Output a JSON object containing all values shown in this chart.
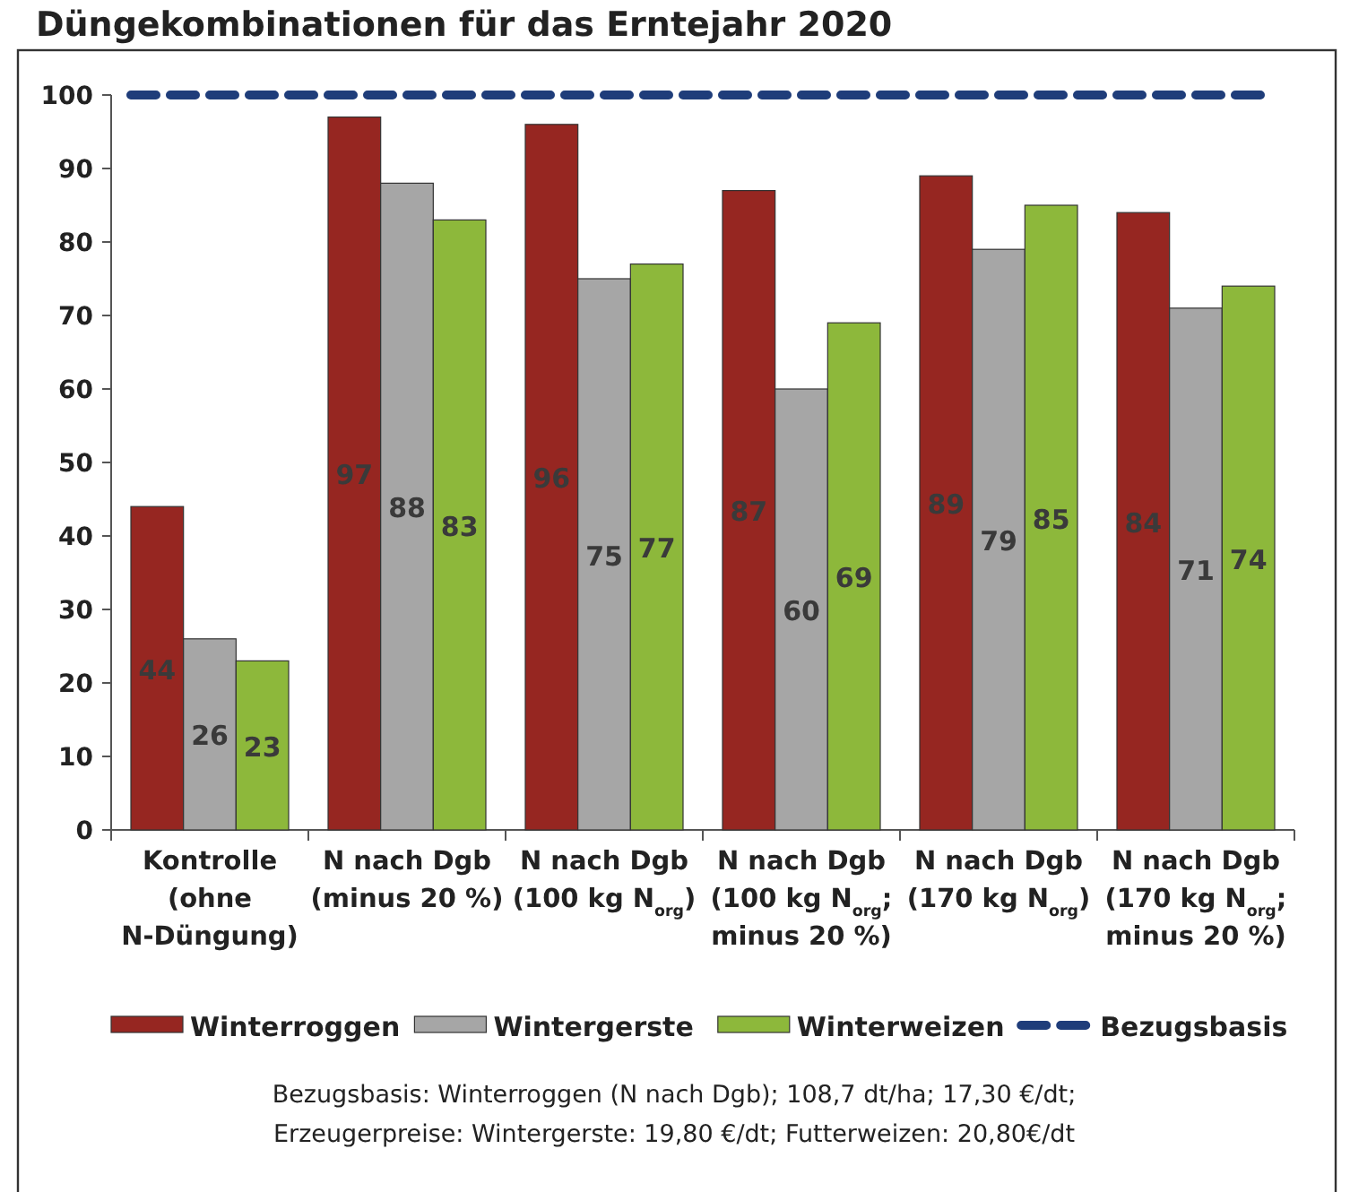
{
  "chart_data": {
    "type": "bar",
    "title": "Düngekombinationen für das Erntejahr 2020",
    "categories": [
      "Kontrolle\n(ohne\nN-Düngung)",
      "N nach Dgb\n(minus 20 %)",
      "N nach Dgb\n(100 kg N$_{org}$)",
      "N nach Dgb\n(100 kg N$_{org}$;\nminus 20 %)",
      "N nach Dgb\n(170 kg N$_{org}$)",
      "N nach Dgb\n(170 kg N$_{org}$;\nminus 20 %)"
    ],
    "series": [
      {
        "name": "Winterroggen",
        "color": "#962621",
        "values": [
          44,
          97,
          96,
          87,
          89,
          84
        ]
      },
      {
        "name": "Wintergerste",
        "color": "#a6a6a6",
        "values": [
          26,
          88,
          75,
          60,
          79,
          71
        ]
      },
      {
        "name": "Winterweizen",
        "color": "#8db83b",
        "values": [
          23,
          83,
          77,
          69,
          85,
          74
        ]
      }
    ],
    "ref_lines": [
      {
        "axis": "y",
        "value": 100,
        "label": "Bezugsbasis",
        "color": "#1f3d7a",
        "line_style": "dashed"
      }
    ],
    "ylim": [
      0,
      100
    ],
    "yticks": [
      0,
      10,
      20,
      30,
      40,
      50,
      60,
      70,
      80,
      90,
      100
    ],
    "data_labels": true,
    "legend": "bottom",
    "grid": false,
    "annotations": [
      "Bezugsbasis: Winterroggen (N nach Dgb); 108,7 dt/ha; 17,30 €/dt;",
      "Erzeugerpreise: Wintergerste: 19,80 €/dt; Futterweizen: 20,80€/dt"
    ]
  }
}
